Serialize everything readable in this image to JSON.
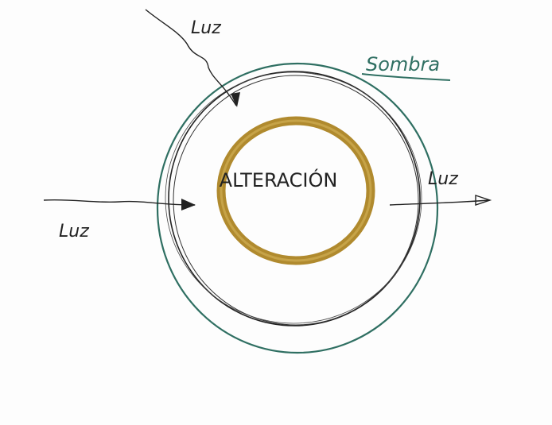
{
  "labels": {
    "light_top": "Luz",
    "shadow": "Sombra",
    "alteration": "ALTERACIÓN",
    "light_right": "Luz",
    "light_left": "Luz"
  }
}
